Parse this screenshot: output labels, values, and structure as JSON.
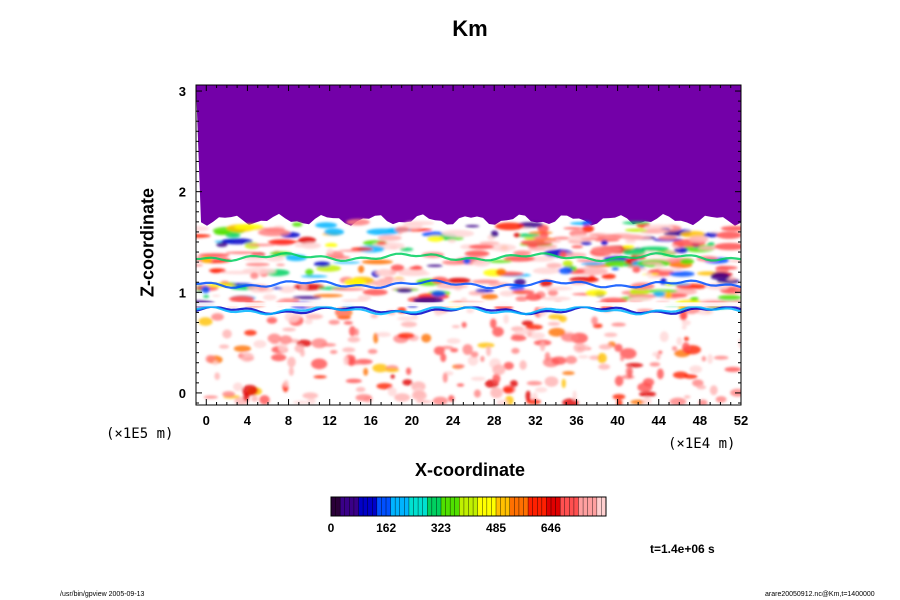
{
  "chart_data": {
    "type": "heatmap",
    "title": "Km",
    "xlabel": "X-coordinate",
    "ylabel": "Z-coordinate",
    "x_unit_label": "(×1E4 m)",
    "y_unit_label": "(×1E5 m)",
    "x_ticks": [
      0,
      4,
      8,
      12,
      16,
      20,
      24,
      28,
      32,
      36,
      40,
      44,
      48,
      52
    ],
    "y_ticks": [
      0,
      1,
      2,
      3
    ],
    "xlim": [
      -1,
      52
    ],
    "ylim": [
      -0.12,
      3.06
    ],
    "colorbar": {
      "ticks": [
        0,
        162,
        323,
        485,
        646
      ],
      "range": [
        0,
        808
      ],
      "colors": [
        "#2a0038",
        "#3a0088",
        "#0000c8",
        "#0050ff",
        "#00b4ff",
        "#00e0d0",
        "#00d060",
        "#50e000",
        "#c0f000",
        "#ffff00",
        "#ffc000",
        "#ff7000",
        "#ff2000",
        "#e00000",
        "#ff5050",
        "#ffa0a0",
        "#ffd0d0"
      ]
    },
    "fill_above": {
      "z_from": 1.72,
      "to": 3.06,
      "color": "#7300a8",
      "label_value": 0
    },
    "grid": false
  },
  "footer": {
    "time_label": "t=1.4e+06 s",
    "left_note": "/usr/bin/gpview 2005-09-13",
    "right_note": "arare20050912.nc@Km,t=1400000"
  }
}
